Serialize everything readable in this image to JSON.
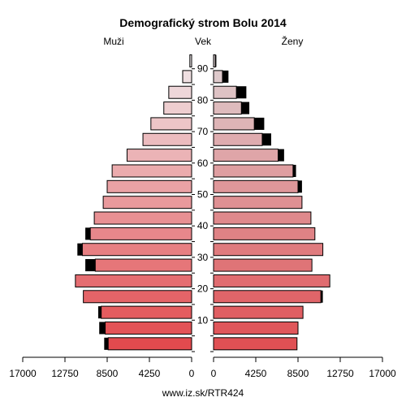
{
  "chart_data": {
    "type": "bar",
    "title": "Demografický strom Bolu 2014",
    "left_label": "Muži",
    "center_label": "Vek",
    "right_label": "Ženy",
    "footer": "www.iz.sk/RTR424",
    "age_ticks": [
      "10",
      "20",
      "30",
      "40",
      "50",
      "60",
      "70",
      "80",
      "90"
    ],
    "x_ticks_left": [
      "17000",
      "12750",
      "8500",
      "4250",
      "0"
    ],
    "x_ticks_right": [
      "0",
      "4250",
      "8500",
      "12750",
      "17000"
    ],
    "xlim": [
      0,
      17000
    ],
    "age_groups": [
      "0-4",
      "5-9",
      "10-14",
      "15-19",
      "20-24",
      "25-29",
      "30-34",
      "35-39",
      "40-44",
      "45-49",
      "50-54",
      "55-59",
      "60-64",
      "65-69",
      "70-74",
      "75-79",
      "80-84",
      "85-89",
      "90+"
    ],
    "series": [
      {
        "name": "Muži",
        "values": [
          8400,
          8700,
          9100,
          10900,
          11700,
          9700,
          11000,
          10200,
          9800,
          8900,
          8500,
          8000,
          6500,
          4900,
          4100,
          2800,
          2300,
          900,
          180
        ],
        "excess": [
          400,
          600,
          300,
          0,
          0,
          1000,
          500,
          500,
          0,
          0,
          0,
          0,
          0,
          0,
          0,
          0,
          0,
          0,
          0
        ]
      },
      {
        "name": "Ženy",
        "values": [
          8400,
          8500,
          9000,
          10800,
          11700,
          9900,
          11000,
          10200,
          9800,
          8900,
          8500,
          8000,
          6500,
          4900,
          4100,
          2800,
          2300,
          900,
          180
        ],
        "excess": [
          0,
          0,
          0,
          200,
          0,
          0,
          0,
          0,
          0,
          0,
          400,
          300,
          600,
          900,
          1000,
          800,
          1000,
          600,
          100
        ]
      }
    ]
  }
}
